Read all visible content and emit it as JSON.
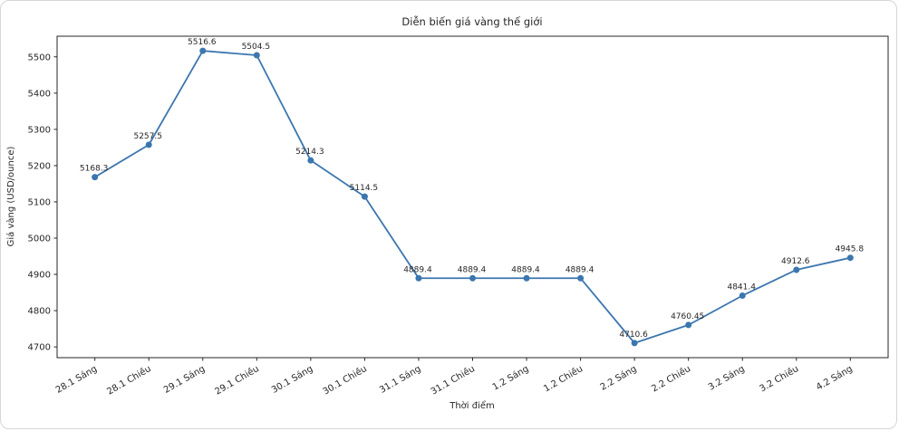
{
  "page": {
    "background": "#ffffff",
    "card_border_color": "#d6d6d6"
  },
  "chart_data": {
    "type": "line",
    "title": "Diễn biến giá vàng thế giới",
    "xlabel": "Thời điểm",
    "ylabel": "Giá vàng (USD/ounce)",
    "categories": [
      "28.1 Sáng",
      "28.1 Chiều",
      "29.1 Sáng",
      "29.1 Chiều",
      "30.1 Sáng",
      "30.1 Chiều",
      "31.1 Sáng",
      "31.1 Chiều",
      "1.2 Sáng",
      "1.2 Chiều",
      "2.2 Sáng",
      "2.2 Chiều",
      "3.2 Sáng",
      "3.2 Chiều",
      "4.2 Sáng"
    ],
    "series": [
      {
        "name": "Giá vàng thế giới",
        "values": [
          5168.3,
          5257.5,
          5516.6,
          5504.5,
          5214.3,
          5114.5,
          4889.4,
          4889.4,
          4889.4,
          4889.4,
          4710.6,
          4760.45,
          4841.4,
          4912.6,
          4945.8
        ],
        "point_labels": [
          "5168.3",
          "5257.5",
          "5516.6",
          "5504.5",
          "5214.3",
          "5114.5",
          "4889.4",
          "4889.4",
          "4889.4",
          "4889.4",
          "4710.6",
          "4760.45",
          "4841.4",
          "4912.6",
          "4945.8"
        ]
      }
    ],
    "y_ticks": [
      4700,
      4800,
      4900,
      5000,
      5100,
      5200,
      5300,
      5400,
      5500
    ],
    "ylim": [
      4670.3,
      5556.9
    ],
    "x_margin_fraction": 0.05,
    "grid": false,
    "legend": null,
    "x_tick_rotation_deg": 30,
    "line_color": "#3b76af",
    "marker_color": "#3b76af",
    "axis_color": "#262626",
    "text_color": "#262626"
  }
}
